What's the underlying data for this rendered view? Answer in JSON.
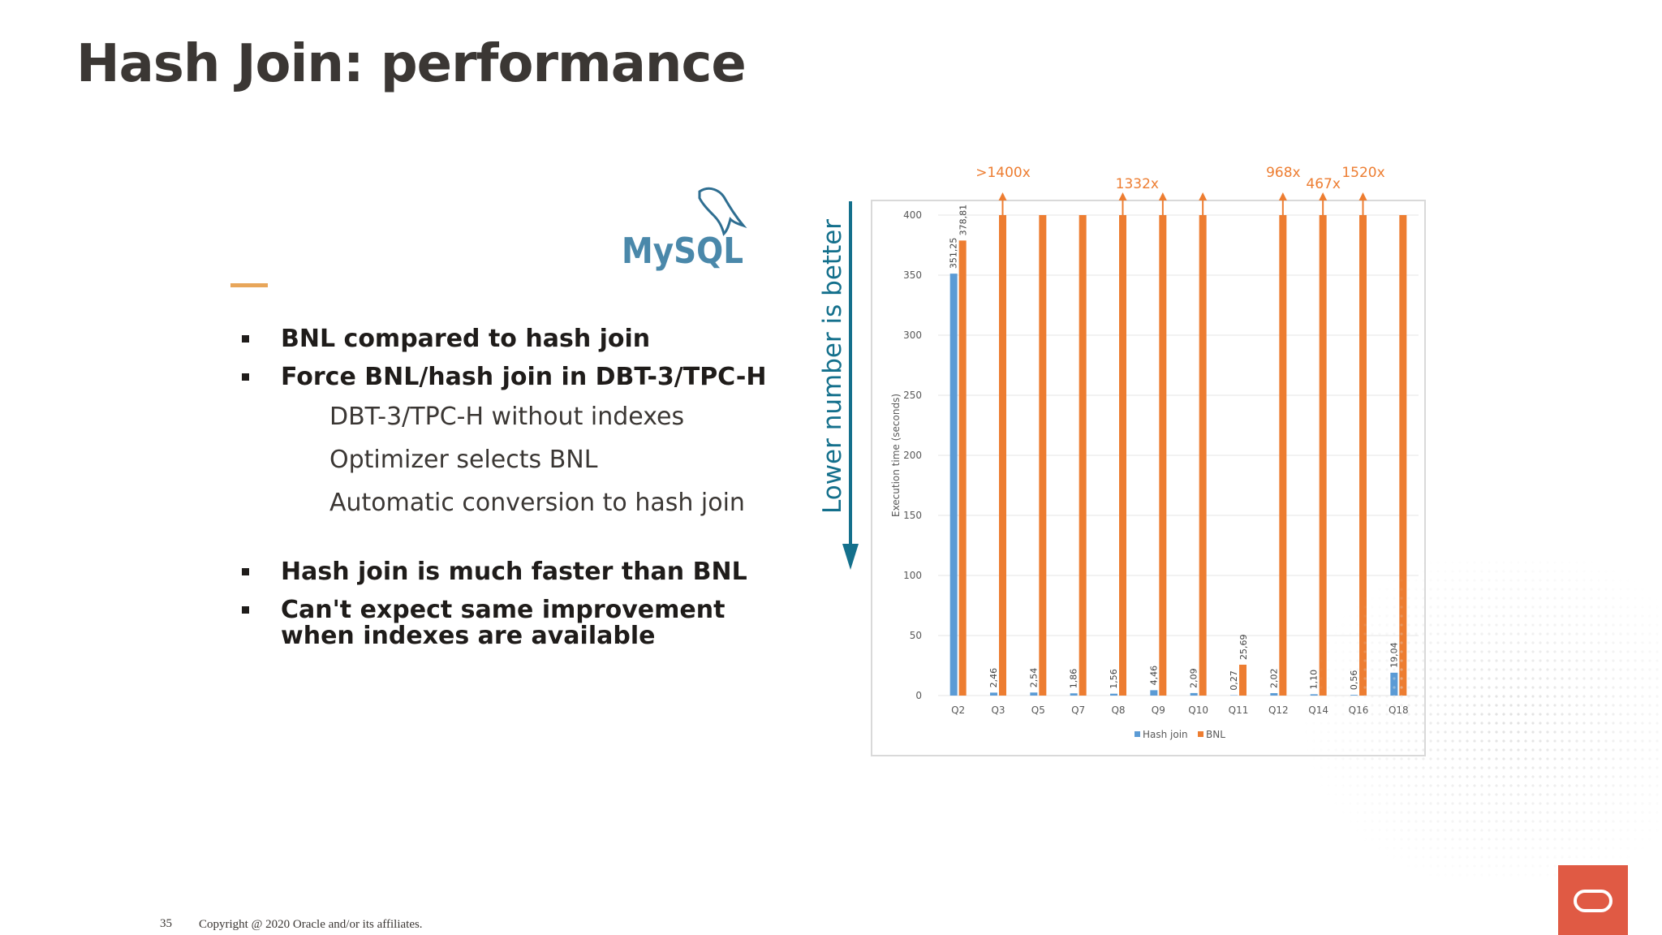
{
  "slide": {
    "title": "Hash Join: performance",
    "logo_text": "MySQL",
    "bullets": [
      "BNL compared to hash join",
      "Force BNL/hash join in DBT-3/TPC-H"
    ],
    "sub_bullets": [
      "DBT-3/TPC-H without indexes",
      "Optimizer selects BNL",
      "Automatic conversion to hash join"
    ],
    "bullets2": [
      "Hash join is much faster than BNL",
      "Can't expect same improvement when indexes are available"
    ],
    "arrow_label": "Lower number is better",
    "page_number": "35",
    "copyright": "Copyright @ 2020 Oracle and/or its affiliates."
  },
  "colors": {
    "hash_join": "#5b9bd5",
    "bnl": "#ed7d31",
    "arrow": "#14708c",
    "accent": "#e8a65a",
    "oracle_red": "#e05a44"
  },
  "chart_data": {
    "type": "bar",
    "categories": [
      "Q2",
      "Q3",
      "Q5",
      "Q7",
      "Q8",
      "Q9",
      "Q10",
      "Q11",
      "Q12",
      "Q14",
      "Q16",
      "Q18"
    ],
    "series": [
      {
        "name": "Hash join",
        "values": [
          351.25,
          2.46,
          2.54,
          1.86,
          1.56,
          4.46,
          2.09,
          0.27,
          2.02,
          1.1,
          0.56,
          19.04
        ]
      },
      {
        "name": "BNL",
        "values": [
          378.81,
          400,
          400,
          400,
          400,
          400,
          400,
          25.69,
          400,
          400,
          400,
          400
        ]
      }
    ],
    "hash_labels": [
      "351,25",
      "2,46",
      "2,54",
      "1,86",
      "1,56",
      "4,46",
      "2,09",
      "0,27",
      "2,02",
      "1,10",
      "0,56",
      "19,04"
    ],
    "bnl_labels": [
      "378,81",
      "",
      "",
      "",
      "",
      "",
      "",
      "25,69",
      "",
      "",
      "",
      ""
    ],
    "overflow_arrows": [
      false,
      true,
      false,
      false,
      true,
      true,
      true,
      false,
      true,
      true,
      true,
      false
    ],
    "speedup_annotations": [
      {
        "category": "Q3",
        "text": ">1400x"
      },
      {
        "category": "Q9",
        "text": "1332x"
      },
      {
        "category": "Q12",
        "text": "968x"
      },
      {
        "category": "Q14",
        "text": "467x"
      },
      {
        "category": "Q16",
        "text": "1520x"
      }
    ],
    "ylabel": "Execution time (seconds)",
    "xlabel": "",
    "ylim": [
      0,
      400
    ],
    "yticks": [
      0,
      50,
      100,
      150,
      200,
      250,
      300,
      350,
      400
    ],
    "grid": true,
    "legend_position": "bottom"
  }
}
